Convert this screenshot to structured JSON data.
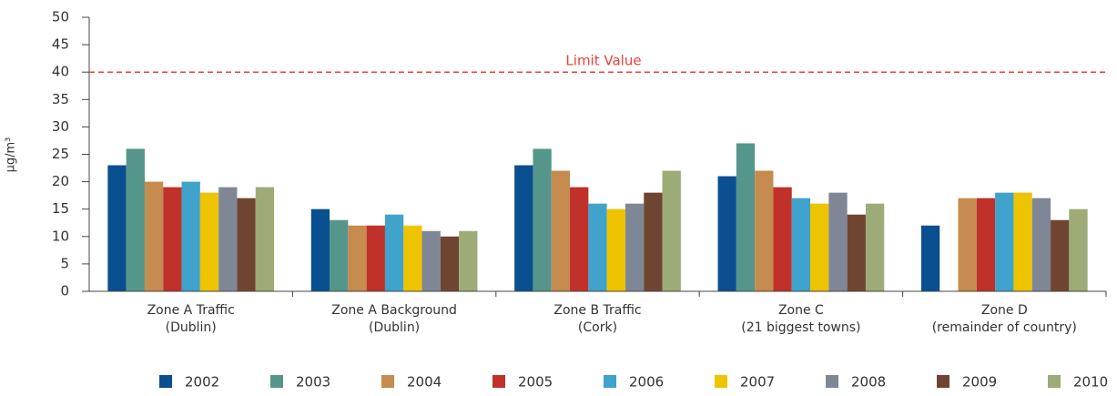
{
  "chart_data": {
    "type": "bar",
    "y_label": "µg/m³",
    "categories": [
      "Zone A Traffic\n(Dublin)",
      "Zone A Background\n(Dublin)",
      "Zone B Traffic\n(Cork)",
      "Zone C\n(21 biggest towns)",
      "Zone D\n(remainder of country)"
    ],
    "series": [
      {
        "name": "2002",
        "color": "#0a4f8f",
        "values": [
          23,
          15,
          23,
          21,
          12
        ]
      },
      {
        "name": "2003",
        "color": "#55968a",
        "values": [
          26,
          13,
          26,
          27,
          null
        ]
      },
      {
        "name": "2004",
        "color": "#c68b4e",
        "values": [
          20,
          12,
          22,
          22,
          17
        ]
      },
      {
        "name": "2005",
        "color": "#c0312a",
        "values": [
          19,
          12,
          19,
          19,
          17
        ]
      },
      {
        "name": "2006",
        "color": "#3fa3cb",
        "values": [
          20,
          14,
          16,
          17,
          18
        ]
      },
      {
        "name": "2007",
        "color": "#eec300",
        "values": [
          18,
          12,
          15,
          16,
          18
        ]
      },
      {
        "name": "2008",
        "color": "#7f8796",
        "values": [
          19,
          11,
          16,
          18,
          17
        ]
      },
      {
        "name": "2009",
        "color": "#6f4532",
        "values": [
          17,
          10,
          18,
          14,
          13
        ]
      },
      {
        "name": "2010",
        "color": "#9dab76",
        "values": [
          19,
          11,
          22,
          16,
          15
        ]
      }
    ],
    "reference_line": {
      "label": "Limit Value",
      "value": 40,
      "color": "#e8413c"
    },
    "ylim": [
      0,
      50
    ],
    "yticks": [
      0,
      5,
      10,
      15,
      20,
      25,
      30,
      35,
      40,
      45,
      50
    ],
    "grid": false,
    "legend": "bottom"
  }
}
